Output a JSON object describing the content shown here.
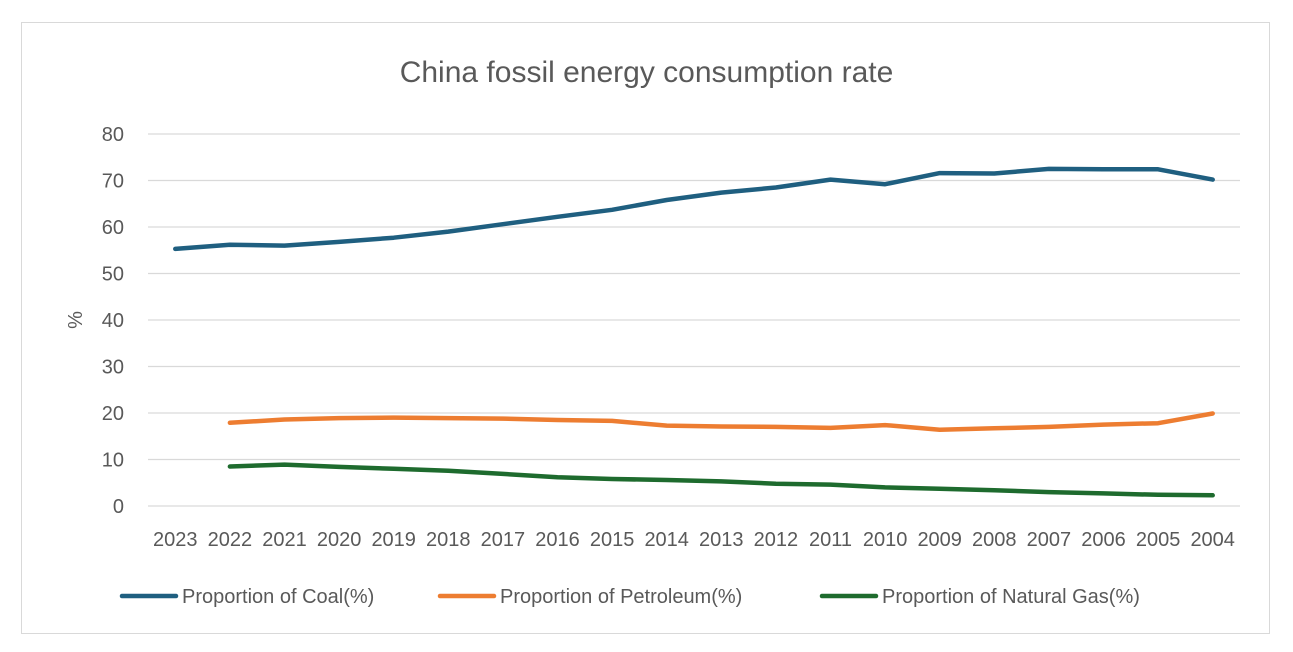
{
  "chart_data": {
    "type": "line",
    "title": "China fossil energy consumption rate",
    "xlabel": "",
    "ylabel": "%",
    "ylim": [
      0,
      80
    ],
    "yticks": [
      0,
      10,
      20,
      30,
      40,
      50,
      60,
      70,
      80
    ],
    "grid": true,
    "legend_position": "bottom",
    "categories": [
      "2023",
      "2022",
      "2021",
      "2020",
      "2019",
      "2018",
      "2017",
      "2016",
      "2015",
      "2014",
      "2013",
      "2012",
      "2011",
      "2010",
      "2009",
      "2008",
      "2007",
      "2006",
      "2005",
      "2004"
    ],
    "series": [
      {
        "name": "Proportion of Coal(%)",
        "color": "#1f5f80",
        "values": [
          55.3,
          56.2,
          56.0,
          56.8,
          57.7,
          59.0,
          60.6,
          62.2,
          63.7,
          65.8,
          67.4,
          68.5,
          70.2,
          69.2,
          71.6,
          71.5,
          72.5,
          72.4,
          72.4,
          70.2
        ]
      },
      {
        "name": "Proportion of Petroleum(%)",
        "color": "#ed7d31",
        "values": [
          null,
          17.9,
          18.6,
          18.9,
          19.0,
          18.9,
          18.8,
          18.5,
          18.3,
          17.3,
          17.1,
          17.0,
          16.8,
          17.4,
          16.4,
          16.7,
          17.0,
          17.5,
          17.8,
          19.9
        ]
      },
      {
        "name": "Proportion of Natural Gas(%)",
        "color": "#1e6b2e",
        "values": [
          null,
          8.5,
          8.9,
          8.4,
          8.0,
          7.6,
          6.9,
          6.2,
          5.8,
          5.6,
          5.3,
          4.8,
          4.6,
          4.0,
          3.7,
          3.4,
          3.0,
          2.7,
          2.4,
          2.3
        ]
      }
    ]
  }
}
